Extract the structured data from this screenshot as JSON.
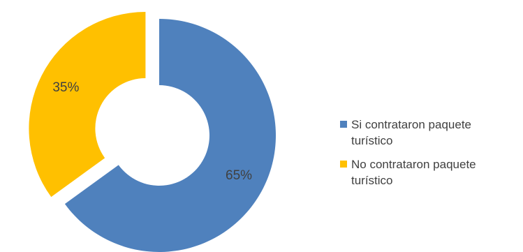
{
  "chart_data": {
    "type": "pie",
    "variant": "doughnut",
    "title": "",
    "legend_position": "right",
    "series": [
      {
        "name": "Si contrataron paquete turístico",
        "value": 65,
        "label": "65%",
        "color": "#4F81BD",
        "exploded": false
      },
      {
        "name": "No contrataron paquete turístico",
        "value": 35,
        "label": "35%",
        "color": "#FFC000",
        "exploded": true
      }
    ]
  }
}
